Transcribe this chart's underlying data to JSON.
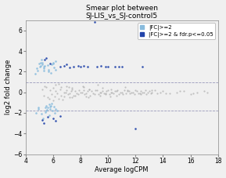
{
  "title_line1": "Smear plot between",
  "title_line2": "SJ-LIS_vs_SJ-control5",
  "xlabel": "Average logCPM",
  "ylabel": "log2 fold change",
  "xlim": [
    4,
    18
  ],
  "ylim": [
    -6,
    7
  ],
  "xticks": [
    4,
    6,
    8,
    10,
    12,
    14,
    16,
    18
  ],
  "yticks": [
    -6,
    -4,
    -2,
    0,
    2,
    4,
    6
  ],
  "hline_upper": 1.0,
  "hline_lower": -1.8,
  "hline_color": "#9999bb",
  "background_color": "#f0f0f0",
  "plot_bg_color": "#f0f0f0",
  "color_grey": "#b0b0b0",
  "color_lightblue": "#88bbdd",
  "color_blue": "#2244aa",
  "legend_label1": "|FC|>=2",
  "legend_label2": "|FC|>=2 & fdr.p<=0.05",
  "title_fontsize": 6.5,
  "label_fontsize": 6,
  "tick_fontsize": 5.5,
  "legend_fontsize": 5,
  "grey_points": [
    [
      5.2,
      0.3
    ],
    [
      5.5,
      0.5
    ],
    [
      5.8,
      0.2
    ],
    [
      6.0,
      0.4
    ],
    [
      6.2,
      0.1
    ],
    [
      6.5,
      0.3
    ],
    [
      6.8,
      0.0
    ],
    [
      7.0,
      0.2
    ],
    [
      7.2,
      -0.1
    ],
    [
      7.4,
      0.3
    ],
    [
      7.6,
      0.1
    ],
    [
      7.8,
      -0.2
    ],
    [
      8.0,
      0.0
    ],
    [
      8.2,
      0.2
    ],
    [
      8.4,
      -0.1
    ],
    [
      8.6,
      0.3
    ],
    [
      8.8,
      0.1
    ],
    [
      9.0,
      -0.2
    ],
    [
      9.2,
      0.2
    ],
    [
      9.4,
      0.0
    ],
    [
      9.6,
      0.1
    ],
    [
      9.8,
      -0.1
    ],
    [
      10.0,
      0.2
    ],
    [
      10.2,
      0.0
    ],
    [
      10.4,
      -0.1
    ],
    [
      10.6,
      0.1
    ],
    [
      10.8,
      -0.2
    ],
    [
      11.0,
      0.0
    ],
    [
      11.2,
      0.2
    ],
    [
      11.4,
      0.1
    ],
    [
      11.6,
      -0.1
    ],
    [
      11.8,
      0.0
    ],
    [
      12.0,
      0.2
    ],
    [
      12.2,
      -0.1
    ],
    [
      12.4,
      0.1
    ],
    [
      12.6,
      0.0
    ],
    [
      12.8,
      -0.2
    ],
    [
      13.0,
      0.1
    ],
    [
      13.2,
      0.0
    ],
    [
      13.4,
      0.2
    ],
    [
      13.6,
      -0.1
    ],
    [
      13.8,
      0.0
    ],
    [
      14.0,
      0.1
    ],
    [
      14.5,
      -0.1
    ],
    [
      15.0,
      0.0
    ],
    [
      15.5,
      0.1
    ],
    [
      16.0,
      -0.2
    ],
    [
      16.5,
      0.0
    ],
    [
      17.0,
      0.1
    ],
    [
      5.3,
      -0.3
    ],
    [
      5.6,
      -0.5
    ],
    [
      5.9,
      -0.2
    ],
    [
      6.1,
      -0.4
    ],
    [
      6.3,
      -0.1
    ],
    [
      6.6,
      -0.3
    ],
    [
      6.9,
      0.0
    ],
    [
      7.1,
      -0.2
    ],
    [
      7.3,
      0.1
    ],
    [
      7.5,
      -0.3
    ],
    [
      7.7,
      -0.1
    ],
    [
      7.9,
      0.2
    ],
    [
      8.1,
      0.0
    ],
    [
      8.3,
      -0.2
    ],
    [
      8.5,
      0.1
    ],
    [
      8.7,
      -0.3
    ],
    [
      8.9,
      -0.1
    ],
    [
      9.1,
      0.2
    ],
    [
      9.3,
      -0.2
    ],
    [
      9.5,
      0.0
    ],
    [
      9.7,
      -0.1
    ],
    [
      9.9,
      0.1
    ],
    [
      10.1,
      -0.2
    ],
    [
      10.3,
      0.0
    ],
    [
      10.5,
      0.1
    ],
    [
      10.7,
      0.2
    ],
    [
      10.9,
      0.0
    ],
    [
      11.1,
      -0.2
    ],
    [
      11.3,
      -0.1
    ],
    [
      11.5,
      0.1
    ],
    [
      11.7,
      0.0
    ],
    [
      11.9,
      -0.2
    ],
    [
      12.1,
      0.1
    ],
    [
      12.3,
      -0.1
    ],
    [
      12.5,
      0.0
    ],
    [
      12.7,
      0.2
    ],
    [
      12.9,
      0.0
    ],
    [
      13.1,
      -0.1
    ],
    [
      5.4,
      0.6
    ],
    [
      5.7,
      -0.6
    ],
    [
      6.4,
      0.8
    ],
    [
      6.7,
      -0.7
    ],
    [
      7.15,
      0.5
    ],
    [
      7.35,
      -0.5
    ],
    [
      8.15,
      0.6
    ],
    [
      8.55,
      -0.5
    ],
    [
      9.25,
      0.7
    ],
    [
      10.15,
      -0.4
    ],
    [
      11.25,
      0.5
    ],
    [
      6.0,
      -0.8
    ],
    [
      6.2,
      0.7
    ],
    [
      6.4,
      -0.6
    ],
    [
      6.6,
      0.5
    ],
    [
      6.8,
      -0.4
    ],
    [
      7.0,
      0.6
    ],
    [
      7.2,
      -0.5
    ],
    [
      7.4,
      0.4
    ],
    [
      7.6,
      -0.3
    ],
    [
      8.2,
      0.5
    ],
    [
      8.4,
      -0.4
    ],
    [
      8.6,
      0.3
    ],
    [
      9.4,
      -0.3
    ],
    [
      9.6,
      0.4
    ],
    [
      9.8,
      -0.2
    ],
    [
      10.2,
      0.3
    ],
    [
      10.6,
      -0.3
    ],
    [
      11.4,
      0.2
    ],
    [
      12.4,
      -0.2
    ],
    [
      13.2,
      0.2
    ],
    [
      14.2,
      -0.1
    ],
    [
      15.2,
      0.1
    ],
    [
      16.2,
      -0.1
    ],
    [
      17.2,
      0.0
    ]
  ],
  "lightblue_points": [
    [
      5.0,
      2.8
    ],
    [
      5.1,
      2.9
    ],
    [
      5.2,
      2.7
    ],
    [
      5.3,
      2.5
    ],
    [
      5.4,
      2.6
    ],
    [
      5.5,
      -1.3
    ],
    [
      5.6,
      -1.5
    ],
    [
      5.7,
      -1.2
    ],
    [
      5.8,
      -1.4
    ],
    [
      5.9,
      -1.1
    ],
    [
      6.0,
      2.8
    ],
    [
      6.1,
      -2.0
    ],
    [
      6.2,
      3.0
    ],
    [
      6.3,
      -1.8
    ],
    [
      4.8,
      2.3
    ],
    [
      4.9,
      -1.6
    ],
    [
      5.15,
      3.2
    ],
    [
      5.25,
      -2.5
    ],
    [
      5.35,
      2.1
    ],
    [
      5.45,
      -1.9
    ],
    [
      4.7,
      1.8
    ],
    [
      4.75,
      -2.0
    ],
    [
      5.05,
      2.5
    ],
    [
      5.55,
      -1.7
    ],
    [
      5.65,
      2.2
    ],
    [
      5.75,
      -2.2
    ],
    [
      5.85,
      1.9
    ],
    [
      5.95,
      -1.8
    ],
    [
      6.05,
      2.4
    ],
    [
      6.15,
      -1.6
    ],
    [
      5.22,
      2.85
    ],
    [
      5.42,
      -1.45
    ],
    [
      5.62,
      2.65
    ],
    [
      5.82,
      -1.35
    ],
    [
      6.02,
      2.85
    ],
    [
      4.85,
      2.1
    ],
    [
      4.95,
      -1.5
    ],
    [
      5.08,
      2.6
    ],
    [
      5.18,
      -2.1
    ],
    [
      5.32,
      2.3
    ],
    [
      5.48,
      -1.8
    ],
    [
      5.68,
      2.0
    ],
    [
      5.78,
      -1.6
    ],
    [
      5.92,
      2.7
    ],
    [
      6.08,
      -1.4
    ],
    [
      6.18,
      2.2
    ]
  ],
  "blue_points": [
    [
      5.2,
      -2.7
    ],
    [
      5.4,
      3.2
    ],
    [
      5.5,
      3.3
    ],
    [
      5.6,
      -2.4
    ],
    [
      6.0,
      -2.5
    ],
    [
      6.5,
      2.5
    ],
    [
      6.8,
      2.6
    ],
    [
      7.0,
      2.7
    ],
    [
      7.5,
      2.5
    ],
    [
      8.0,
      2.5
    ],
    [
      8.5,
      2.5
    ],
    [
      9.0,
      6.8
    ],
    [
      9.2,
      2.5
    ],
    [
      10.0,
      2.5
    ],
    [
      10.5,
      2.5
    ],
    [
      12.0,
      -3.5
    ],
    [
      12.5,
      2.5
    ],
    [
      5.3,
      -3.0
    ],
    [
      5.8,
      2.8
    ],
    [
      6.2,
      -2.8
    ],
    [
      7.8,
      2.6
    ],
    [
      9.5,
      2.6
    ],
    [
      11.0,
      2.5
    ],
    [
      6.5,
      -2.3
    ],
    [
      7.2,
      2.4
    ],
    [
      8.2,
      2.6
    ],
    [
      9.8,
      2.5
    ],
    [
      10.8,
      2.5
    ]
  ]
}
